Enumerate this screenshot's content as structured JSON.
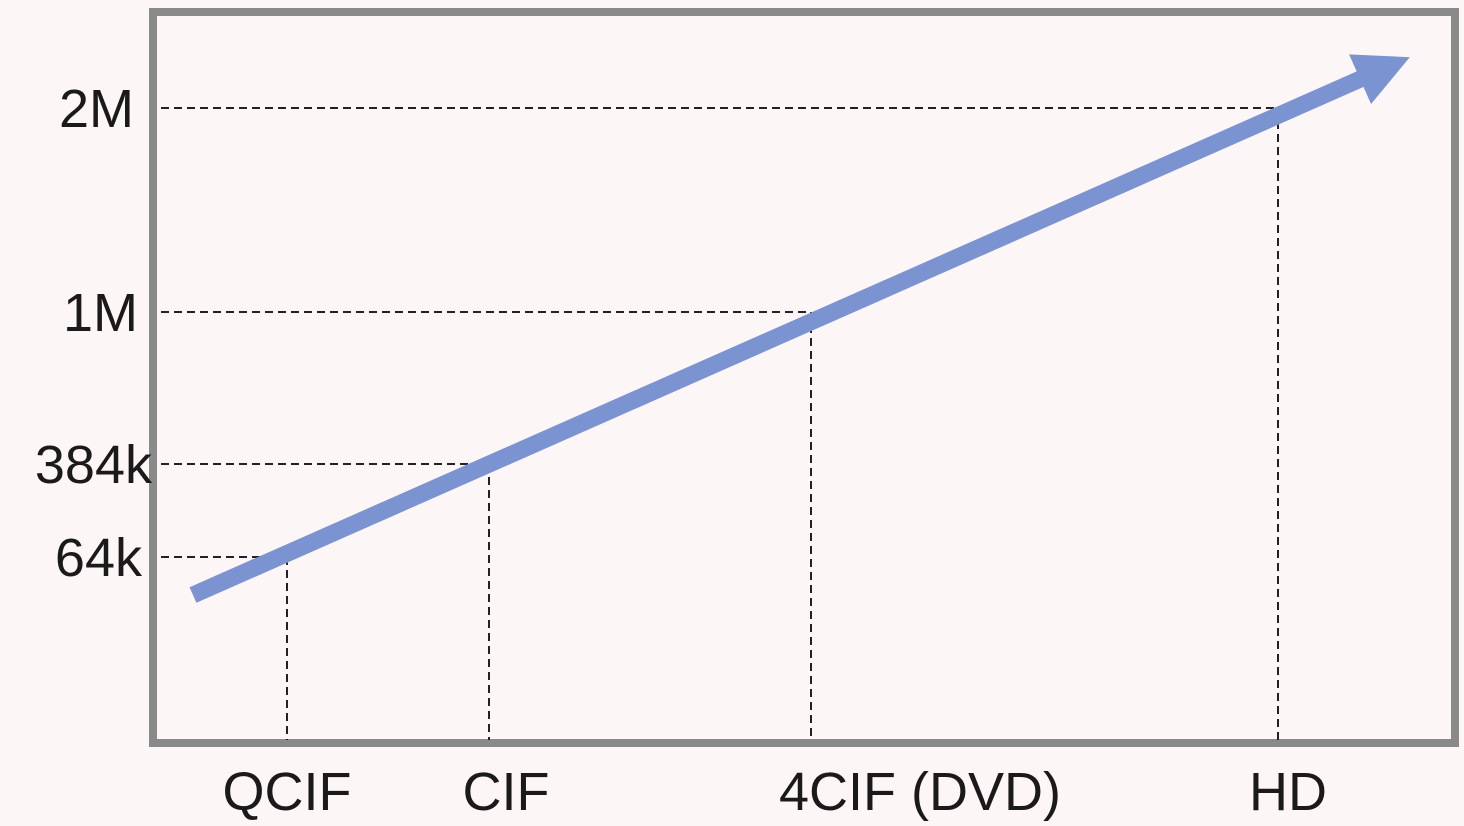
{
  "chart_data": {
    "type": "line",
    "title": "",
    "xlabel": "",
    "ylabel": "",
    "categories": [
      "QCIF",
      "CIF",
      "4CIF (DVD)",
      "HD"
    ],
    "y_tick_labels": [
      "64k",
      "384k",
      "1M",
      "2M"
    ],
    "points": [
      {
        "x": "QCIF",
        "y": "64k"
      },
      {
        "x": "CIF",
        "y": "384k"
      },
      {
        "x": "4CIF (DVD)",
        "y": "1M"
      },
      {
        "x": "HD",
        "y": "2M"
      }
    ],
    "grid": false,
    "legend": "none",
    "trend_arrow": true,
    "colors": {
      "line": "#7b93d1",
      "frame": "#8a8a8a",
      "background": "#fdf6f6",
      "guides": "#222222",
      "text": "#1a1a1a"
    }
  }
}
